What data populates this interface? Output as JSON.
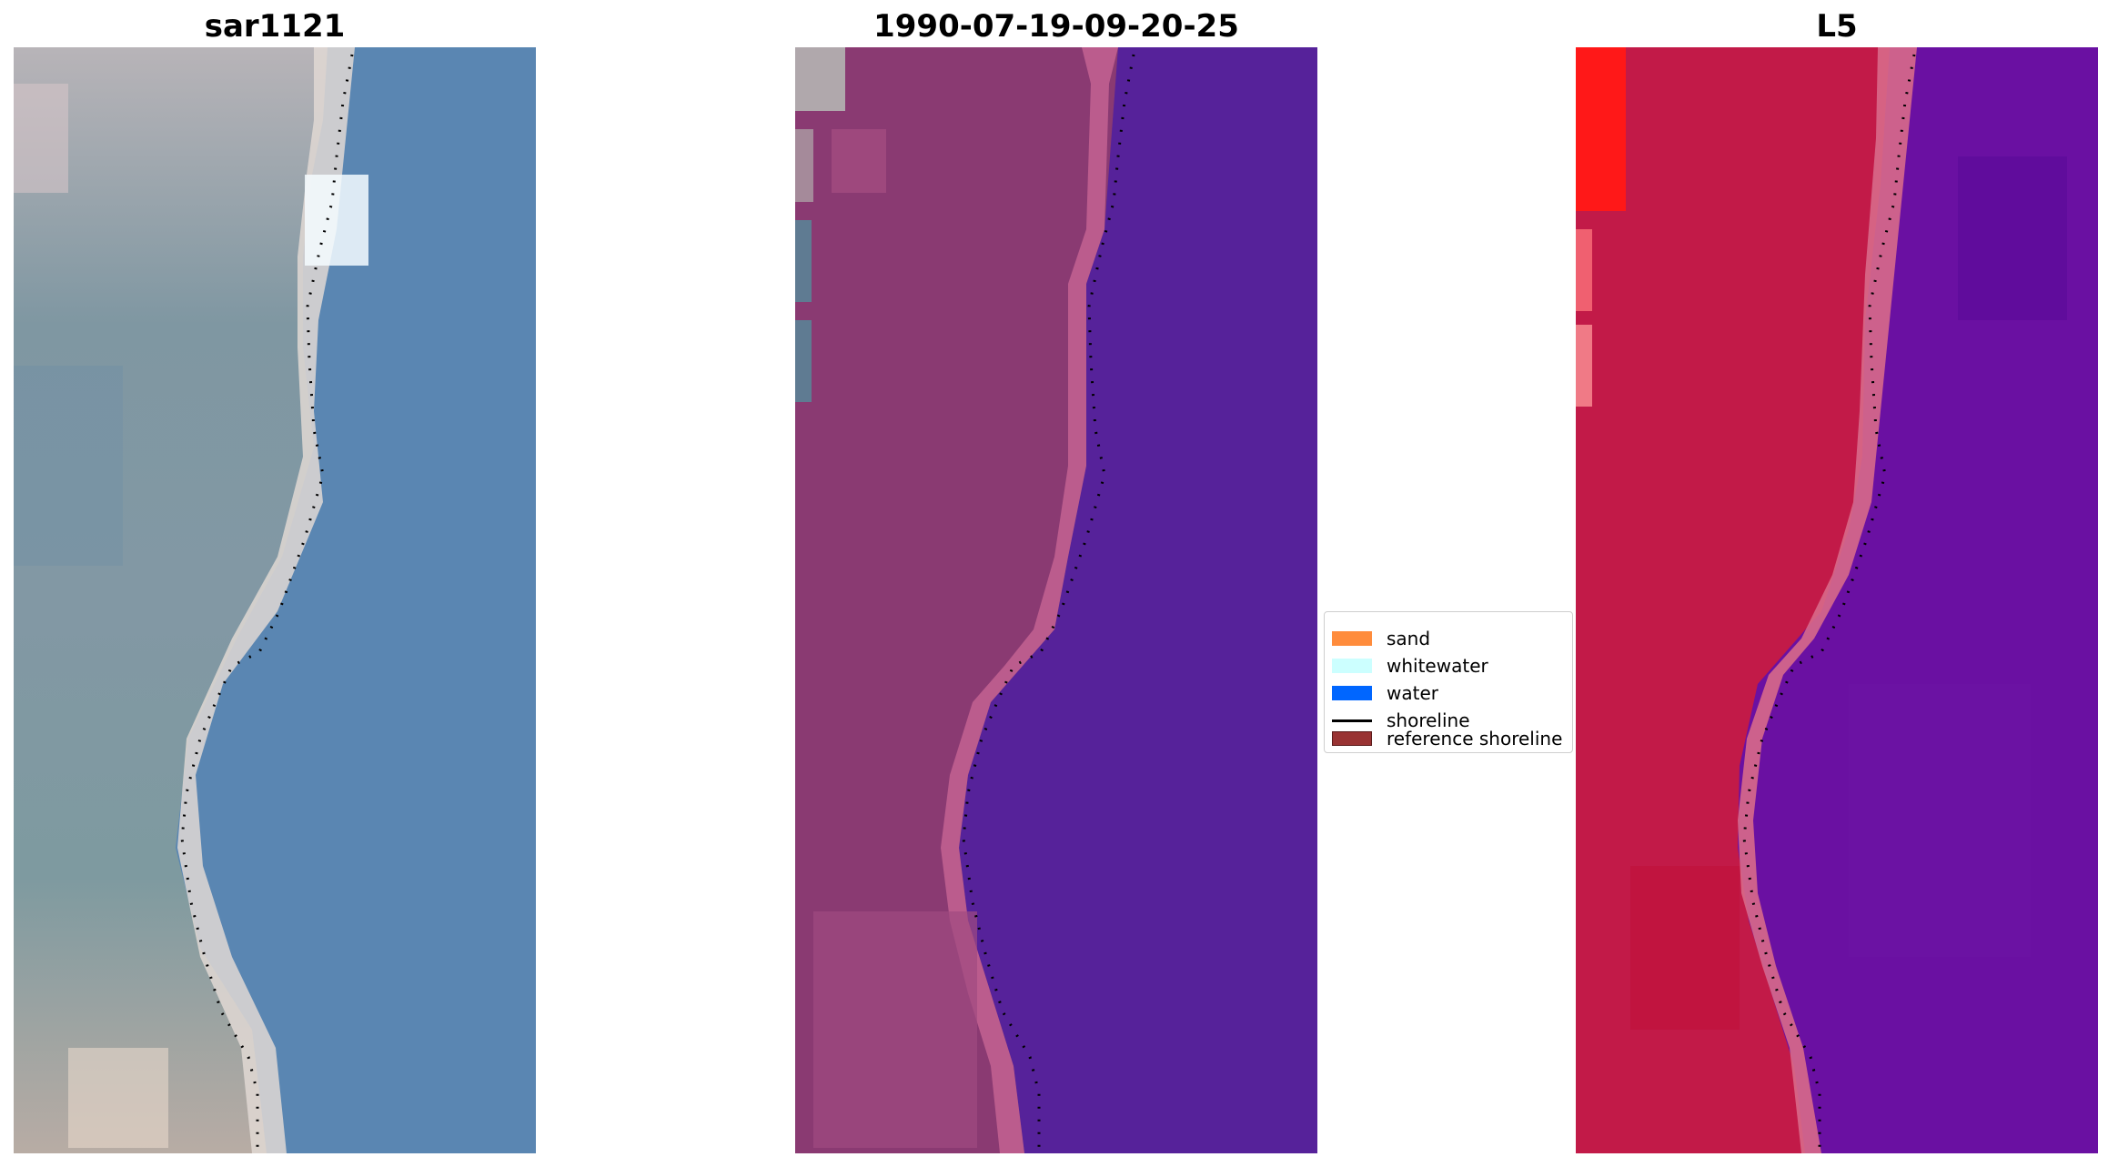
{
  "panels": [
    {
      "title": "sar1121"
    },
    {
      "title": "1990-07-19-09-20-25"
    },
    {
      "title": "L5"
    }
  ],
  "legend": {
    "items": [
      {
        "label": "sand",
        "color": "#ff8c3c"
      },
      {
        "label": "whitewater",
        "color": "#ccffff"
      },
      {
        "label": "water",
        "color": "#0066ff"
      },
      {
        "label": "shoreline",
        "color": "#000000",
        "kind": "line"
      },
      {
        "label": "reference shoreline",
        "color": "#993333"
      }
    ]
  },
  "colors": {
    "rgb_water": "#5a86b2",
    "rgb_land": "#8aa0a8",
    "rgb_sand": "#e4dcd0",
    "classified_water": "#56229a",
    "classified_land": "#8a3a72",
    "classified_edge": "#c06090",
    "fcc_land": "#c21a48",
    "fcc_water": "#6a10a2",
    "fcc_edge": "#d86a8a",
    "shoreline_dots": "#000000"
  }
}
